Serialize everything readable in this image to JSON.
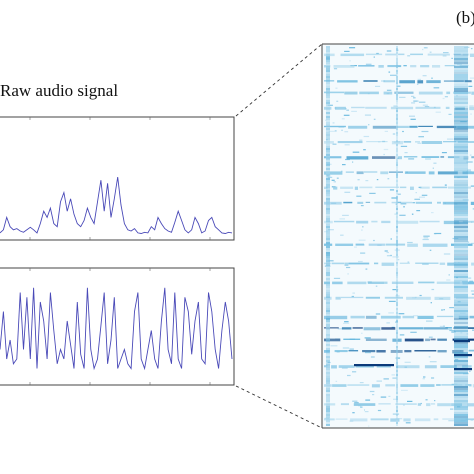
{
  "panel_label": "(b)",
  "raw_signal_title": "Raw audio signal",
  "colors": {
    "waveform": "#4a4ab8",
    "heatmap_light": "#d6ecf7",
    "heatmap_mid": "#5fb4dc",
    "heatmap_dark": "#0a3a7a",
    "frame": "#444444"
  },
  "chart_data": [
    {
      "type": "line",
      "title": "",
      "series": [
        {
          "values": [
            0.05,
            0.1,
            0.3,
            0.15,
            0.1,
            0.12,
            0.08,
            0.06,
            0.1,
            0.14,
            0.1,
            0.05,
            0.2,
            0.4,
            0.3,
            0.45,
            0.2,
            0.15,
            0.55,
            0.7,
            0.4,
            0.6,
            0.35,
            0.2,
            0.15,
            0.25,
            0.45,
            0.3,
            0.2,
            0.55,
            0.9,
            0.4,
            0.85,
            0.3,
            0.6,
            0.95,
            0.5,
            0.2,
            0.1,
            0.08,
            0.12,
            0.05,
            0.04,
            0.06,
            0.05,
            0.15,
            0.1,
            0.3,
            0.2,
            0.12,
            0.08,
            0.06,
            0.22,
            0.4,
            0.25,
            0.1,
            0.05,
            0.1,
            0.3,
            0.2,
            0.05,
            0.08,
            0.25,
            0.3,
            0.15,
            0.1,
            0.05,
            0.04,
            0.06,
            0.05
          ]
        }
      ]
    },
    {
      "type": "line",
      "title": "",
      "series": [
        {
          "values": [
            0.3,
            0.7,
            0.2,
            0.4,
            0.15,
            0.2,
            0.9,
            0.3,
            0.85,
            0.2,
            0.95,
            0.1,
            0.8,
            0.6,
            0.2,
            0.9,
            0.5,
            0.15,
            0.3,
            0.2,
            0.6,
            0.35,
            0.1,
            0.8,
            0.25,
            0.1,
            0.95,
            0.3,
            0.1,
            0.2,
            0.55,
            0.9,
            0.15,
            0.4,
            0.85,
            0.1,
            0.2,
            0.3,
            0.15,
            0.1,
            0.7,
            0.9,
            0.2,
            0.1,
            0.3,
            0.5,
            0.2,
            0.1,
            0.6,
            0.95,
            0.3,
            0.15,
            0.9,
            0.2,
            0.1,
            0.85,
            0.7,
            0.25,
            0.6,
            0.8,
            0.2,
            0.15,
            0.9,
            0.7,
            0.3,
            0.1,
            0.5,
            0.8,
            0.6,
            0.2
          ]
        }
      ]
    },
    {
      "type": "heatmap",
      "rows": [
        {
          "r": 0.02,
          "s": 0.2
        },
        {
          "r": 0.05,
          "s": 0.35
        },
        {
          "r": 0.09,
          "s": 0.6
        },
        {
          "r": 0.12,
          "s": 0.45
        },
        {
          "r": 0.16,
          "s": 0.3
        },
        {
          "r": 0.21,
          "s": 0.55
        },
        {
          "r": 0.25,
          "s": 0.25
        },
        {
          "r": 0.29,
          "s": 0.7
        },
        {
          "r": 0.33,
          "s": 0.5
        },
        {
          "r": 0.37,
          "s": 0.3
        },
        {
          "r": 0.41,
          "s": 0.45
        },
        {
          "r": 0.46,
          "s": 0.25
        },
        {
          "r": 0.52,
          "s": 0.4
        },
        {
          "r": 0.57,
          "s": 0.3
        },
        {
          "r": 0.62,
          "s": 0.35
        },
        {
          "r": 0.66,
          "s": 0.25
        },
        {
          "r": 0.71,
          "s": 0.5
        },
        {
          "r": 0.74,
          "s": 0.85
        },
        {
          "r": 0.77,
          "s": 0.95
        },
        {
          "r": 0.8,
          "s": 0.7
        },
        {
          "r": 0.84,
          "s": 0.4
        },
        {
          "r": 0.89,
          "s": 0.3
        },
        {
          "r": 0.94,
          "s": 0.25
        },
        {
          "r": 0.98,
          "s": 0.2
        }
      ]
    }
  ]
}
